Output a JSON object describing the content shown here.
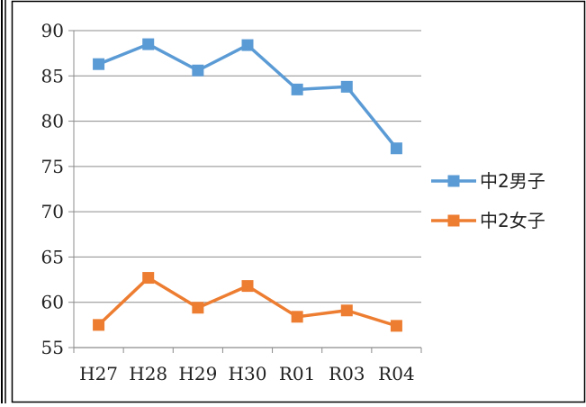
{
  "chart_data": {
    "type": "line",
    "categories": [
      "H27",
      "H28",
      "H29",
      "H30",
      "R01",
      "R03",
      "R04"
    ],
    "series": [
      {
        "name": "中2男子",
        "color": "#5b9bd5",
        "values": [
          86.3,
          88.5,
          85.6,
          88.4,
          83.5,
          83.8,
          77.0
        ]
      },
      {
        "name": "中2女子",
        "color": "#ed7d31",
        "values": [
          57.5,
          62.7,
          59.4,
          61.8,
          58.4,
          59.1,
          57.4
        ]
      }
    ],
    "y_ticks": [
      55,
      60,
      65,
      70,
      75,
      80,
      85,
      90
    ],
    "ylim": [
      55,
      90
    ],
    "grid": true,
    "legend": "right",
    "marker": "square"
  }
}
